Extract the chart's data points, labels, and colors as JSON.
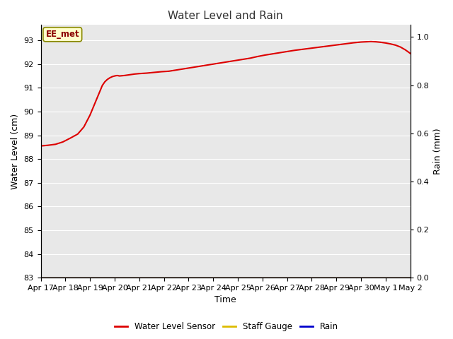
{
  "title": "Water Level and Rain",
  "xlabel": "Time",
  "ylabel_left": "Water Level (cm)",
  "ylabel_right": "Rain (mm)",
  "figure_facecolor": "#ffffff",
  "plot_bg_color": "#e8e8e8",
  "ylim_left": [
    83.0,
    93.65
  ],
  "ylim_right": [
    0.0,
    1.05
  ],
  "yticks_left": [
    83.0,
    84.0,
    85.0,
    86.0,
    87.0,
    88.0,
    89.0,
    90.0,
    91.0,
    92.0,
    93.0
  ],
  "yticks_right": [
    0.0,
    0.2,
    0.4,
    0.6,
    0.8,
    1.0
  ],
  "xtick_labels": [
    "Apr 17",
    "Apr 18",
    "Apr 19",
    "Apr 20",
    "Apr 21",
    "Apr 22",
    "Apr 23",
    "Apr 24",
    "Apr 25",
    "Apr 26",
    "Apr 27",
    "Apr 28",
    "Apr 29",
    "Apr 30",
    "May 1",
    "May 2"
  ],
  "annotation_text": "EE_met",
  "annotation_facecolor": "#ffffcc",
  "annotation_edgecolor": "#888800",
  "annotation_textcolor": "#8B0000",
  "line_color_sensor": "#dd0000",
  "line_color_staff": "#ddbb00",
  "line_color_rain": "#0000cc",
  "legend_labels": [
    "Water Level Sensor",
    "Staff Gauge",
    "Rain"
  ],
  "water_level_x": [
    0,
    0.3,
    0.6,
    0.9,
    1.2,
    1.5,
    1.75,
    1.9,
    2.0,
    2.1,
    2.2,
    2.3,
    2.4,
    2.5,
    2.6,
    2.7,
    2.8,
    2.9,
    3.0,
    3.1,
    3.2,
    3.4,
    3.6,
    3.8,
    4.0,
    4.3,
    4.6,
    4.9,
    5.2,
    5.5,
    5.8,
    6.1,
    6.4,
    6.7,
    7.0,
    7.3,
    7.6,
    7.9,
    8.2,
    8.5,
    8.8,
    9.1,
    9.4,
    9.7,
    10.0,
    10.3,
    10.6,
    10.9,
    11.2,
    11.5,
    11.8,
    12.1,
    12.4,
    12.7,
    13.0,
    13.2,
    13.4,
    13.6,
    13.8,
    14.0,
    14.2,
    14.4,
    14.6,
    14.8,
    15.0
  ],
  "water_level_y": [
    88.55,
    88.58,
    88.62,
    88.72,
    88.88,
    89.05,
    89.35,
    89.65,
    89.85,
    90.1,
    90.35,
    90.6,
    90.85,
    91.1,
    91.25,
    91.35,
    91.42,
    91.47,
    91.5,
    91.52,
    91.5,
    91.52,
    91.55,
    91.58,
    91.6,
    91.62,
    91.65,
    91.68,
    91.7,
    91.75,
    91.8,
    91.85,
    91.9,
    91.95,
    92.0,
    92.05,
    92.1,
    92.15,
    92.2,
    92.25,
    92.32,
    92.38,
    92.43,
    92.48,
    92.53,
    92.58,
    92.62,
    92.66,
    92.7,
    92.74,
    92.78,
    92.82,
    92.86,
    92.9,
    92.93,
    92.94,
    92.95,
    92.94,
    92.92,
    92.89,
    92.85,
    92.8,
    92.72,
    92.6,
    92.45
  ]
}
